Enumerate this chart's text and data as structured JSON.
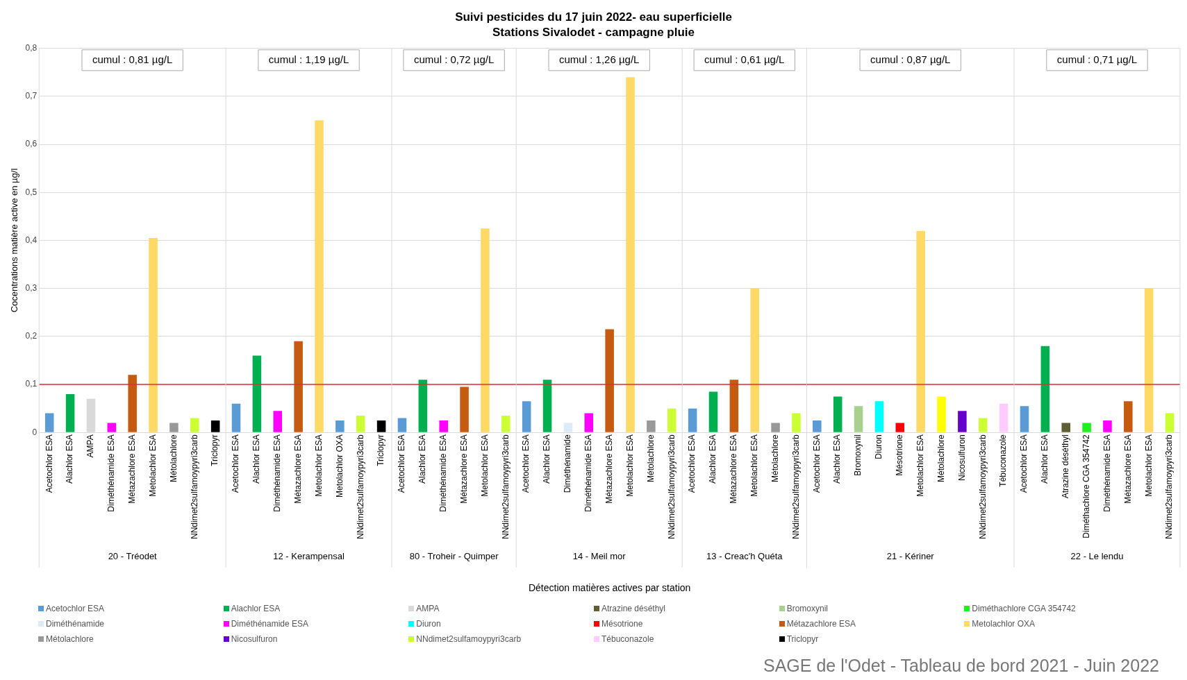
{
  "chart_data": {
    "type": "bar",
    "title": "Suivi pesticides du 17 juin 2022- eau superficielle",
    "subtitle": "Stations Sivalodet - campagne pluie",
    "xlabel": "Détection matières actives par station",
    "ylabel": "Cocentrations matière active en µg/l",
    "categories": [
      "Acetochlor ESA",
      "Alachlor ESA",
      "AMPA",
      "Diméthénamide ESA",
      "Métazachlore ESA",
      "Metolachlor ESA",
      "Métolachlore",
      "NNdimet2sulfamoypyri3carb",
      "Triclopyr",
      "Acetochlor ESA",
      "Alachlor ESA",
      "Diméthénamide ESA",
      "Métazachlore ESA",
      "Metolachlor ESA",
      "Metolachlor OXA",
      "NNdimet2sulfamoypyri3carb",
      "Triclopyr",
      "Acetochlor ESA",
      "Alachlor ESA",
      "Diméthénamide ESA",
      "Métazachlore ESA",
      "Metolachlor ESA",
      "NNdimet2sulfamoypyri3carb",
      "Acetochlor ESA",
      "Alachlor ESA",
      "Diméthénamide",
      "Diméthénamide ESA",
      "Métazachlore ESA",
      "Metolachlor ESA",
      "Métolachlore",
      "NNdimet2sulfamoypyri3carb",
      "Acetochlor ESA",
      "Alachlor ESA",
      "Métazachlore ESA",
      "Metolachlor ESA",
      "Métolachlore",
      "NNdimet2sulfamoypyri3carb",
      "Acetochlor ESA",
      "Alachlor ESA",
      "Bromoxynil",
      "Diuron",
      "Mésotrione",
      "Metolachlor ESA",
      "Métolachlore",
      "Nicosulfuron",
      "NNdimet2sulfamoypyri3carb",
      "Tébuconazole",
      "Acetochlor ESA",
      "Alachlor ESA",
      "Atrazine déséthyl",
      "Diméthachlore CGA 354742",
      "Diméthénamide ESA",
      "Métazachlore ESA",
      "Metolachlor ESA",
      "NNdimet2sulfamoypyri3carb"
    ],
    "series": [
      {
        "name": "Acetochlor ESA",
        "color": "#5b9bd5",
        "values": [
          0.04,
          null,
          null,
          null,
          null,
          null,
          null,
          null,
          null,
          0.06,
          null,
          null,
          null,
          null,
          null,
          null,
          null,
          0.03,
          null,
          null,
          null,
          null,
          null,
          0.065,
          null,
          null,
          null,
          null,
          null,
          null,
          null,
          0.05,
          null,
          null,
          null,
          null,
          null,
          0.025,
          null,
          null,
          null,
          null,
          null,
          null,
          null,
          null,
          null,
          0.055,
          null,
          null,
          null,
          null,
          null,
          null,
          null
        ]
      },
      {
        "name": "Alachlor ESA",
        "color": "#00b050",
        "values": [
          null,
          0.08,
          null,
          null,
          null,
          null,
          null,
          null,
          null,
          null,
          0.16,
          null,
          null,
          null,
          null,
          null,
          null,
          null,
          0.11,
          null,
          null,
          null,
          null,
          null,
          0.11,
          null,
          null,
          null,
          null,
          null,
          null,
          null,
          0.085,
          null,
          null,
          null,
          null,
          null,
          0.075,
          null,
          null,
          null,
          null,
          null,
          null,
          null,
          null,
          null,
          0.18,
          null,
          null,
          null,
          null,
          null,
          null
        ]
      },
      {
        "name": "AMPA",
        "color": "#d9d9d9",
        "values": [
          null,
          null,
          0.07,
          null,
          null,
          null,
          null,
          null,
          null,
          null,
          null,
          null,
          null,
          null,
          null,
          null,
          null,
          null,
          null,
          null,
          null,
          null,
          null,
          null,
          null,
          null,
          null,
          null,
          null,
          null,
          null,
          null,
          null,
          null,
          null,
          null,
          null,
          null,
          null,
          null,
          null,
          null,
          null,
          null,
          null,
          null,
          null,
          null,
          null,
          null,
          null,
          null,
          null,
          null,
          null
        ]
      },
      {
        "name": "Atrazine déséthyl",
        "color": "#5e5e32",
        "values": [
          null,
          null,
          null,
          null,
          null,
          null,
          null,
          null,
          null,
          null,
          null,
          null,
          null,
          null,
          null,
          null,
          null,
          null,
          null,
          null,
          null,
          null,
          null,
          null,
          null,
          null,
          null,
          null,
          null,
          null,
          null,
          null,
          null,
          null,
          null,
          null,
          null,
          null,
          null,
          null,
          null,
          null,
          null,
          null,
          null,
          null,
          null,
          null,
          null,
          0.02,
          null,
          null,
          null,
          null,
          null
        ]
      },
      {
        "name": "Bromoxynil",
        "color": "#a9d08e",
        "values": [
          null,
          null,
          null,
          null,
          null,
          null,
          null,
          null,
          null,
          null,
          null,
          null,
          null,
          null,
          null,
          null,
          null,
          null,
          null,
          null,
          null,
          null,
          null,
          null,
          null,
          null,
          null,
          null,
          null,
          null,
          null,
          null,
          null,
          null,
          null,
          null,
          null,
          null,
          null,
          0.055,
          null,
          null,
          null,
          null,
          null,
          null,
          null,
          null,
          null,
          null,
          null,
          null,
          null,
          null,
          null
        ]
      },
      {
        "name": "Diméthachlore CGA 354742",
        "color": "#22ee22",
        "values": [
          null,
          null,
          null,
          null,
          null,
          null,
          null,
          null,
          null,
          null,
          null,
          null,
          null,
          null,
          null,
          null,
          null,
          null,
          null,
          null,
          null,
          null,
          null,
          null,
          null,
          null,
          null,
          null,
          null,
          null,
          null,
          null,
          null,
          null,
          null,
          null,
          null,
          null,
          null,
          null,
          null,
          null,
          null,
          null,
          null,
          null,
          null,
          null,
          null,
          null,
          0.02,
          null,
          null,
          null,
          null
        ]
      },
      {
        "name": "Diméthénamide",
        "color": "#ddebf7",
        "values": [
          null,
          null,
          null,
          null,
          null,
          null,
          null,
          null,
          null,
          null,
          null,
          null,
          null,
          null,
          null,
          null,
          null,
          null,
          null,
          null,
          null,
          null,
          null,
          null,
          null,
          0.02,
          null,
          null,
          null,
          null,
          null,
          null,
          null,
          null,
          null,
          null,
          null,
          null,
          null,
          null,
          null,
          null,
          null,
          null,
          null,
          null,
          null,
          null,
          null,
          null,
          null,
          null,
          null,
          null,
          null
        ]
      },
      {
        "name": "Diméthénamide ESA",
        "color": "#ff00ff",
        "values": [
          null,
          null,
          null,
          0.02,
          null,
          null,
          null,
          null,
          null,
          null,
          null,
          0.045,
          null,
          null,
          null,
          null,
          null,
          null,
          null,
          0.025,
          null,
          null,
          null,
          null,
          null,
          null,
          0.04,
          null,
          null,
          null,
          null,
          null,
          null,
          null,
          null,
          null,
          null,
          null,
          null,
          null,
          null,
          null,
          null,
          null,
          null,
          null,
          null,
          null,
          null,
          null,
          null,
          0.025,
          null,
          null,
          null
        ]
      },
      {
        "name": "Diuron",
        "color": "#00ffff",
        "values": [
          null,
          null,
          null,
          null,
          null,
          null,
          null,
          null,
          null,
          null,
          null,
          null,
          null,
          null,
          null,
          null,
          null,
          null,
          null,
          null,
          null,
          null,
          null,
          null,
          null,
          null,
          null,
          null,
          null,
          null,
          null,
          null,
          null,
          null,
          null,
          null,
          null,
          null,
          null,
          null,
          0.065,
          null,
          null,
          null,
          null,
          null,
          null,
          null,
          null,
          null,
          null,
          null,
          null,
          null,
          null
        ]
      },
      {
        "name": "Mésotrione",
        "color": "#ff0000",
        "values": [
          null,
          null,
          null,
          null,
          null,
          null,
          null,
          null,
          null,
          null,
          null,
          null,
          null,
          null,
          null,
          null,
          null,
          null,
          null,
          null,
          null,
          null,
          null,
          null,
          null,
          null,
          null,
          null,
          null,
          null,
          null,
          null,
          null,
          null,
          null,
          null,
          null,
          null,
          null,
          null,
          null,
          0.02,
          null,
          null,
          null,
          null,
          null,
          null,
          null,
          null,
          null,
          null,
          null,
          null,
          null
        ]
      },
      {
        "name": "Métazachlore ESA",
        "color": "#c55a11",
        "values": [
          null,
          null,
          null,
          null,
          0.12,
          null,
          null,
          null,
          null,
          null,
          null,
          null,
          0.19,
          null,
          null,
          null,
          null,
          null,
          null,
          null,
          0.095,
          null,
          null,
          null,
          null,
          null,
          null,
          0.215,
          null,
          null,
          null,
          null,
          null,
          0.11,
          null,
          null,
          null,
          null,
          null,
          null,
          null,
          null,
          null,
          null,
          null,
          null,
          null,
          null,
          null,
          null,
          null,
          null,
          0.065,
          null,
          null
        ]
      },
      {
        "name": "Metolachlor OXA",
        "color": "#ffd966",
        "values": [
          null,
          null,
          null,
          null,
          null,
          0.405,
          null,
          null,
          null,
          null,
          null,
          null,
          null,
          0.65,
          null,
          null,
          null,
          null,
          null,
          null,
          null,
          0.425,
          null,
          null,
          null,
          null,
          null,
          null,
          0.74,
          null,
          null,
          null,
          null,
          null,
          0.3,
          null,
          null,
          null,
          null,
          null,
          null,
          null,
          0.42,
          null,
          null,
          null,
          null,
          null,
          null,
          null,
          null,
          null,
          null,
          0.3,
          null
        ]
      },
      {
        "name": "Métolachlore",
        "color": "#999999",
        "values": [
          null,
          null,
          null,
          null,
          null,
          null,
          0.02,
          null,
          null,
          null,
          null,
          null,
          null,
          null,
          null,
          null,
          null,
          null,
          null,
          null,
          null,
          null,
          null,
          null,
          null,
          null,
          null,
          null,
          null,
          0.025,
          null,
          null,
          null,
          null,
          null,
          0.02,
          null,
          null,
          null,
          null,
          null,
          null,
          null,
          null,
          null,
          null,
          null,
          null,
          null,
          null,
          null,
          null,
          null,
          null,
          null
        ]
      },
      {
        "name": "Nicosulfuron",
        "color": "#6600cc",
        "values": [
          null,
          null,
          null,
          null,
          null,
          null,
          null,
          null,
          null,
          null,
          null,
          null,
          null,
          null,
          null,
          null,
          null,
          null,
          null,
          null,
          null,
          null,
          null,
          null,
          null,
          null,
          null,
          null,
          null,
          null,
          null,
          null,
          null,
          null,
          null,
          null,
          null,
          null,
          null,
          null,
          null,
          null,
          null,
          null,
          0.045,
          null,
          null,
          null,
          null,
          null,
          null,
          null,
          null,
          null,
          null
        ]
      },
      {
        "name": "NNdimet2sulfamoypyri3carb",
        "color": "#ccff33",
        "values": [
          null,
          null,
          null,
          null,
          null,
          null,
          null,
          0.03,
          null,
          null,
          null,
          null,
          null,
          null,
          null,
          0.035,
          null,
          null,
          null,
          null,
          null,
          null,
          0.035,
          null,
          null,
          null,
          null,
          null,
          null,
          null,
          0.05,
          null,
          null,
          null,
          null,
          null,
          0.04,
          null,
          null,
          null,
          null,
          null,
          null,
          null,
          null,
          0.03,
          null,
          null,
          null,
          null,
          null,
          null,
          null,
          null,
          0.04
        ]
      },
      {
        "name": "Tébuconazole",
        "color": "#ffccff",
        "values": [
          null,
          null,
          null,
          null,
          null,
          null,
          null,
          null,
          null,
          null,
          null,
          null,
          null,
          null,
          null,
          null,
          null,
          null,
          null,
          null,
          null,
          null,
          null,
          null,
          null,
          null,
          null,
          null,
          null,
          null,
          null,
          null,
          null,
          null,
          null,
          null,
          null,
          null,
          null,
          null,
          null,
          null,
          null,
          null,
          null,
          null,
          0.06,
          null,
          null,
          null,
          null,
          null,
          null,
          null,
          null
        ]
      },
      {
        "name": "Triclopyr",
        "color": "#000000",
        "values": [
          null,
          null,
          null,
          null,
          null,
          null,
          null,
          null,
          0.025,
          null,
          null,
          null,
          null,
          null,
          null,
          null,
          0.025,
          null,
          null,
          null,
          null,
          null,
          null,
          null,
          null,
          null,
          null,
          null,
          null,
          null,
          null,
          null,
          null,
          null,
          null,
          null,
          null,
          null,
          null,
          null,
          null,
          null,
          null,
          null,
          null,
          null,
          null,
          null,
          null,
          null,
          null,
          null,
          null,
          null,
          null
        ]
      },
      {
        "color": "#5b9bd5",
        "values": [
          null,
          null,
          null,
          null,
          null,
          null,
          null,
          null,
          null,
          null,
          null,
          null,
          null,
          null,
          0.025,
          null,
          null,
          null,
          null,
          null,
          null,
          null,
          null,
          null,
          null,
          null,
          null,
          null,
          null,
          null,
          null,
          null,
          null,
          null,
          null,
          null,
          null,
          null,
          null,
          null,
          null,
          null,
          null,
          null,
          null,
          null,
          null,
          null,
          null,
          null,
          null,
          null,
          null,
          null,
          null
        ]
      },
      {
        "color": "#ffff00",
        "values": [
          null,
          null,
          null,
          null,
          null,
          null,
          null,
          null,
          null,
          null,
          null,
          null,
          null,
          null,
          null,
          null,
          null,
          null,
          null,
          null,
          null,
          null,
          null,
          null,
          null,
          null,
          null,
          null,
          null,
          null,
          null,
          null,
          null,
          null,
          null,
          null,
          null,
          null,
          null,
          null,
          null,
          null,
          null,
          0.075,
          null,
          null,
          null,
          null,
          null,
          null,
          null,
          null,
          null,
          null,
          null
        ]
      }
    ],
    "ylim": [
      0,
      0.8
    ],
    "yticks": [
      0,
      {
        "value": 0.1,
        "label": "0,1"
      },
      {
        "value": 0.2,
        "label": "0,2"
      },
      {
        "value": 0.3,
        "label": "0,3"
      },
      {
        "value": 0.4,
        "label": "0,4"
      },
      {
        "value": 0.5,
        "label": "0,5"
      },
      {
        "value": 0.6,
        "label": "0,6"
      },
      {
        "value": 0.7,
        "label": "0,7"
      },
      {
        "value": 0.8,
        "label": "0,8"
      }
    ],
    "grid": "y",
    "legend": "bottom",
    "ref_lines": [
      {
        "axis": "y",
        "value": 0.1,
        "color": "#e03030"
      }
    ],
    "annotations": [
      "cumul : 0,81 µg/L",
      "cumul : 1,19 µg/L",
      "cumul : 0,72 µg/L",
      "cumul : 1,26 µg/L",
      "cumul : 0,61 µg/L",
      "cumul : 0,87 µg/L",
      "cumul : 0,71 µg/L",
      "20 - Tréodet",
      "12 - Kerampensal",
      "80 - Troheir - Quimper",
      "14 - Meil mor",
      "13 - Creac'h Quéta",
      "21 - Kériner",
      "22 - Le lendu",
      "SAGE de l'Odet - Tableau de bord 2021 - Juin 2022"
    ]
  }
}
